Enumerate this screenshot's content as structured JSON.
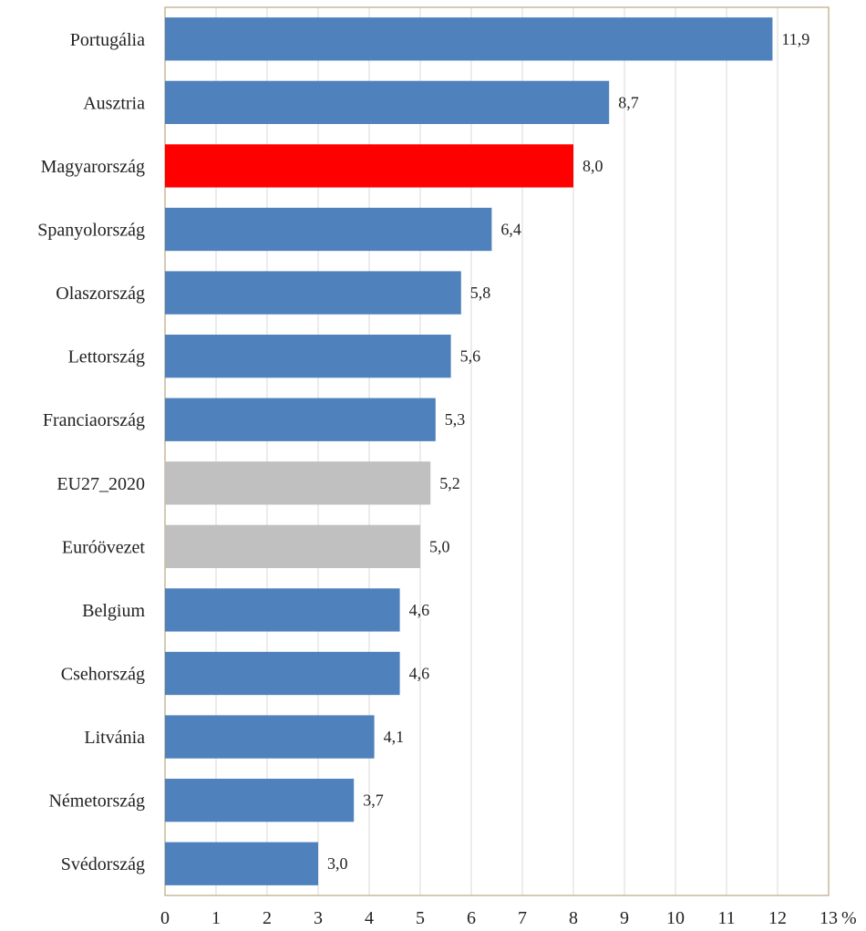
{
  "chart_data": {
    "type": "bar",
    "orientation": "horizontal",
    "categories": [
      "Portugália",
      "Ausztria",
      "Magyarország",
      "Spanyolország",
      "Olaszország",
      "Lettország",
      "Franciaország",
      "EU27_2020",
      "Euróövezet",
      "Belgium",
      "Csehország",
      "Litvánia",
      "Németország",
      "Svédország"
    ],
    "values": [
      11.9,
      8.7,
      8.0,
      6.4,
      5.8,
      5.6,
      5.3,
      5.2,
      5.0,
      4.6,
      4.6,
      4.1,
      3.7,
      3.0
    ],
    "value_labels": [
      "11,9",
      "8,7",
      "8,0",
      "6,4",
      "5,8",
      "5,6",
      "5,3",
      "5,2",
      "5,0",
      "4,6",
      "4,6",
      "4,1",
      "3,7",
      "3,0"
    ],
    "colors": [
      "#4f81bd",
      "#4f81bd",
      "#ff0000",
      "#4f81bd",
      "#4f81bd",
      "#4f81bd",
      "#4f81bd",
      "#c0c0c0",
      "#c0c0c0",
      "#4f81bd",
      "#4f81bd",
      "#4f81bd",
      "#4f81bd",
      "#4f81bd"
    ],
    "xlim": [
      0,
      13
    ],
    "xticks": [
      0,
      1,
      2,
      3,
      4,
      5,
      6,
      7,
      8,
      9,
      10,
      11,
      12,
      13
    ],
    "tick_labels": [
      "0",
      "1",
      "2",
      "3",
      "4",
      "5",
      "6",
      "7",
      "8",
      "9",
      "10",
      "11",
      "12",
      "13"
    ],
    "unit": "%",
    "title": "",
    "xlabel": "",
    "ylabel": "",
    "grid": "vertical",
    "legend": "none"
  }
}
